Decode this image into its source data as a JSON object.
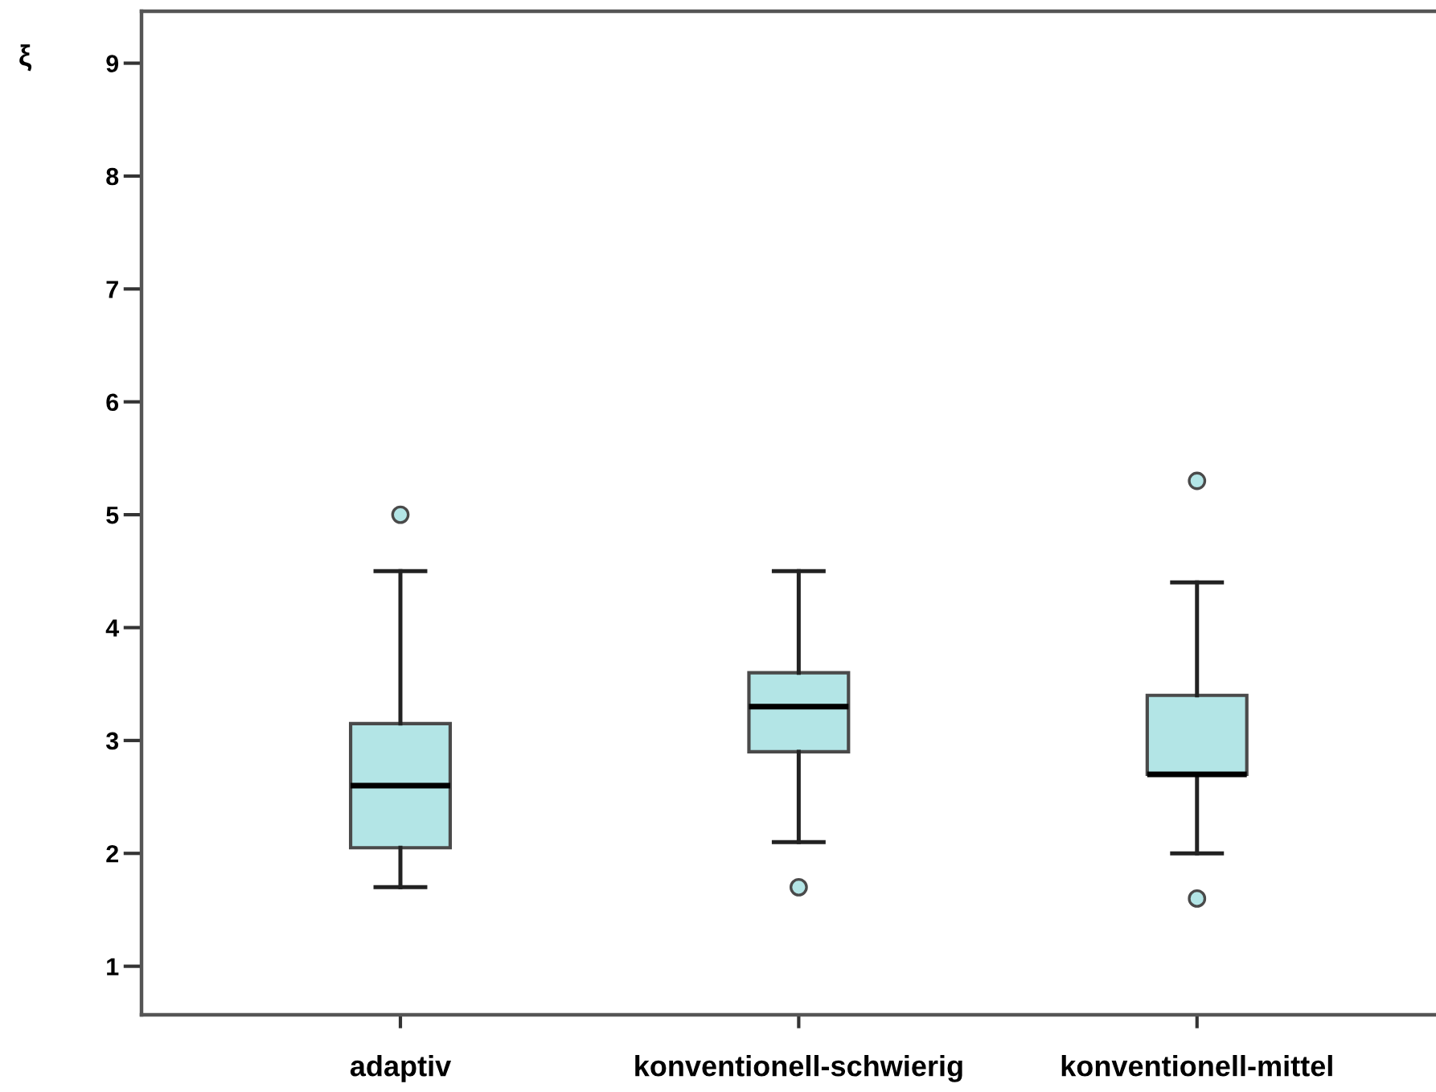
{
  "chart_data": {
    "type": "box",
    "ylabel": "ξ",
    "categories": [
      "adaptiv",
      "konventionell-schwierig",
      "konventionell-mittel"
    ],
    "series": [
      {
        "color": "#b3e5e6",
        "boxes": [
          {
            "low": 1.7,
            "q1": 2.05,
            "median": 2.6,
            "q3": 3.15,
            "high": 4.5,
            "outliers": [
              5.0
            ]
          },
          {
            "low": 2.1,
            "q1": 2.9,
            "median": 3.3,
            "q3": 3.6,
            "high": 4.5,
            "outliers": [
              1.7
            ]
          },
          {
            "low": 2.0,
            "q1": 2.7,
            "median": 2.7,
            "q3": 3.4,
            "high": 4.4,
            "outliers": [
              5.3,
              1.6
            ]
          }
        ]
      }
    ],
    "ylim": [
      0.57,
      9.46
    ],
    "yticks": [
      1,
      2,
      3,
      4,
      5,
      6,
      7,
      8,
      9
    ],
    "grid": false,
    "legend": false
  }
}
